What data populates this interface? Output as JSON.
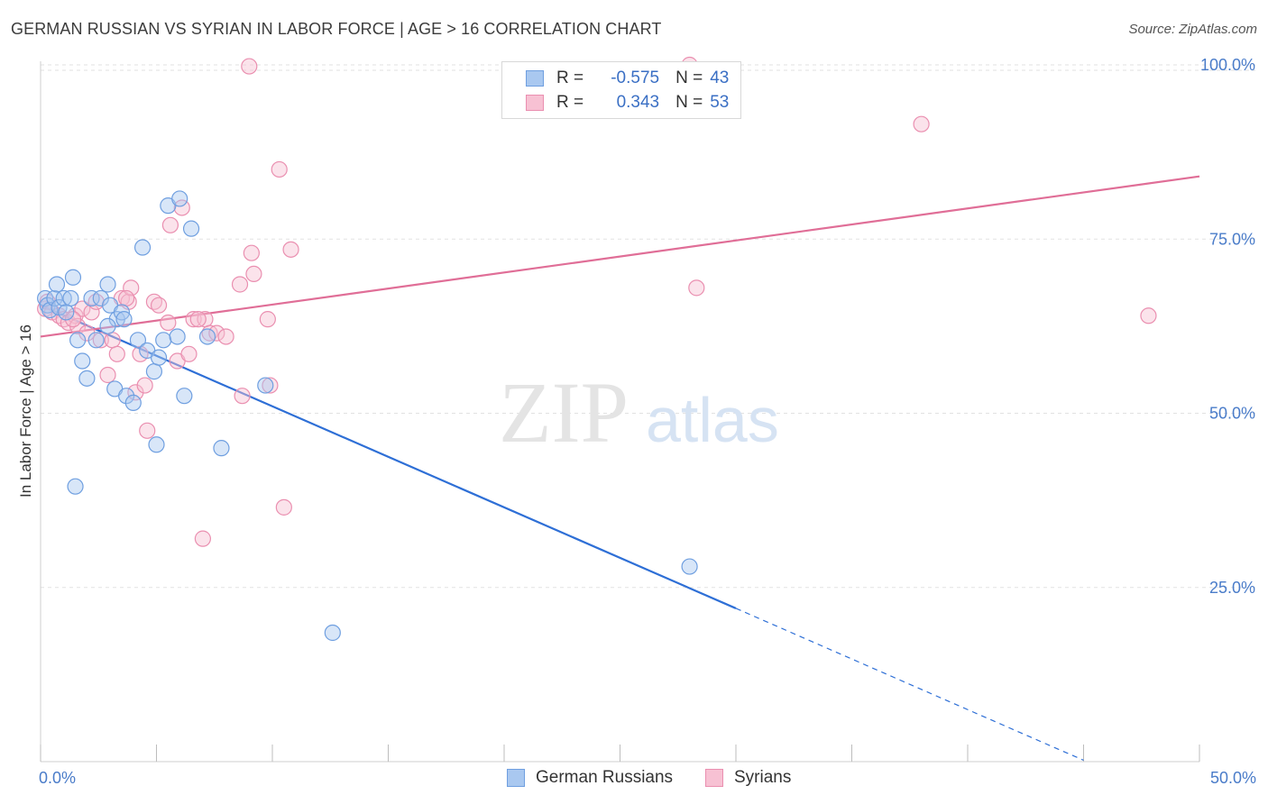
{
  "title": "GERMAN RUSSIAN VS SYRIAN IN LABOR FORCE | AGE > 16 CORRELATION CHART",
  "source": "Source: ZipAtlas.com",
  "watermark": {
    "zip": "ZIP",
    "atlas": "atlas"
  },
  "colors": {
    "blue_fill": "#a9c8f0",
    "blue_stroke": "#6f9fe0",
    "blue_line": "#2e6fd6",
    "pink_fill": "#f7c1d3",
    "pink_stroke": "#ea8fb0",
    "pink_line": "#e06e97",
    "grid": "#e2e2e2",
    "axis_label": "#4a7cc9"
  },
  "legend": {
    "rows": [
      {
        "r_label": "R =",
        "r_value": "-0.575",
        "n_label": "N =",
        "n_value": "43"
      },
      {
        "r_label": "R =",
        "r_value": "0.343",
        "n_label": "N =",
        "n_value": "53"
      }
    ]
  },
  "bottom_legend": [
    "German Russians",
    "Syrians"
  ],
  "chart_data": {
    "type": "scatter",
    "title": "GERMAN RUSSIAN VS SYRIAN IN LABOR FORCE | AGE > 16 CORRELATION CHART",
    "xlabel": "",
    "ylabel": "In Labor Force | Age > 16",
    "xlim": [
      0,
      50
    ],
    "ylim": [
      0,
      100
    ],
    "x_tick_labels": [
      "0.0%",
      "50.0%"
    ],
    "y_ticks": [
      25,
      50,
      75,
      100
    ],
    "y_tick_labels": [
      "25.0%",
      "50.0%",
      "75.0%",
      "100.0%"
    ],
    "grid": true,
    "legend_position": "top-center",
    "series": [
      {
        "name": "German Russians",
        "r": -0.575,
        "n": 43,
        "trend": {
          "x0": 0,
          "y0": 65.5,
          "x1": 30,
          "y1": 22.0,
          "dashed_to_x": 45,
          "dashed_to_y": 0.2
        },
        "points": [
          [
            0.2,
            66.5
          ],
          [
            0.3,
            65.5
          ],
          [
            0.4,
            64.8
          ],
          [
            0.6,
            66.5
          ],
          [
            0.7,
            68.5
          ],
          [
            0.8,
            65.2
          ],
          [
            1.0,
            66.5
          ],
          [
            1.1,
            64.5
          ],
          [
            1.3,
            66.5
          ],
          [
            1.4,
            69.5
          ],
          [
            1.6,
            60.5
          ],
          [
            1.8,
            57.5
          ],
          [
            2.0,
            55.0
          ],
          [
            2.2,
            66.5
          ],
          [
            2.4,
            60.5
          ],
          [
            2.6,
            66.5
          ],
          [
            2.9,
            68.5
          ],
          [
            3.0,
            65.5
          ],
          [
            3.2,
            53.5
          ],
          [
            3.3,
            63.5
          ],
          [
            3.5,
            64.5
          ],
          [
            3.6,
            63.5
          ],
          [
            3.7,
            52.5
          ],
          [
            4.0,
            51.5
          ],
          [
            4.2,
            60.5
          ],
          [
            4.6,
            59.0
          ],
          [
            4.9,
            56.0
          ],
          [
            5.0,
            45.5
          ],
          [
            5.1,
            58.0
          ],
          [
            5.3,
            60.5
          ],
          [
            5.5,
            79.8
          ],
          [
            5.9,
            61.0
          ],
          [
            6.0,
            80.8
          ],
          [
            6.2,
            52.5
          ],
          [
            6.5,
            76.5
          ],
          [
            7.2,
            61.0
          ],
          [
            7.8,
            45.0
          ],
          [
            9.7,
            54.0
          ],
          [
            4.4,
            73.8
          ],
          [
            12.6,
            18.5
          ],
          [
            1.5,
            39.5
          ],
          [
            2.9,
            62.5
          ],
          [
            28.0,
            28.0
          ]
        ]
      },
      {
        "name": "Syrians",
        "r": 0.343,
        "n": 53,
        "trend": {
          "x0": 0,
          "y0": 61.0,
          "x1": 50,
          "y1": 84.0
        },
        "points": [
          [
            0.2,
            65.0
          ],
          [
            0.3,
            66.0
          ],
          [
            0.5,
            64.5
          ],
          [
            0.8,
            64.0
          ],
          [
            1.0,
            63.5
          ],
          [
            1.2,
            63.0
          ],
          [
            1.5,
            64.0
          ],
          [
            1.6,
            62.5
          ],
          [
            1.8,
            65.0
          ],
          [
            2.0,
            61.5
          ],
          [
            2.2,
            64.5
          ],
          [
            2.4,
            66.0
          ],
          [
            2.6,
            60.5
          ],
          [
            2.9,
            55.5
          ],
          [
            3.1,
            60.5
          ],
          [
            3.3,
            58.5
          ],
          [
            3.5,
            66.5
          ],
          [
            3.8,
            66.0
          ],
          [
            3.9,
            68.0
          ],
          [
            4.1,
            53.0
          ],
          [
            4.3,
            58.5
          ],
          [
            4.5,
            54.0
          ],
          [
            4.6,
            47.5
          ],
          [
            4.9,
            66.0
          ],
          [
            5.1,
            65.5
          ],
          [
            5.5,
            63.0
          ],
          [
            5.6,
            77.0
          ],
          [
            5.9,
            57.5
          ],
          [
            6.1,
            79.5
          ],
          [
            6.4,
            58.5
          ],
          [
            6.6,
            63.5
          ],
          [
            7.1,
            63.5
          ],
          [
            7.3,
            61.5
          ],
          [
            7.6,
            61.5
          ],
          [
            8.0,
            61.0
          ],
          [
            8.6,
            68.5
          ],
          [
            8.7,
            52.5
          ],
          [
            9.1,
            73.0
          ],
          [
            9.2,
            70.0
          ],
          [
            9.8,
            63.5
          ],
          [
            9.9,
            54.0
          ],
          [
            10.3,
            85.0
          ],
          [
            10.5,
            36.5
          ],
          [
            10.8,
            73.5
          ],
          [
            9.0,
            99.8
          ],
          [
            7.0,
            32.0
          ],
          [
            6.8,
            63.5
          ],
          [
            28.3,
            68.0
          ],
          [
            38.0,
            91.5
          ],
          [
            47.8,
            64.0
          ],
          [
            28.0,
            100.0
          ],
          [
            3.7,
            66.5
          ],
          [
            1.4,
            63.5
          ]
        ]
      }
    ]
  }
}
